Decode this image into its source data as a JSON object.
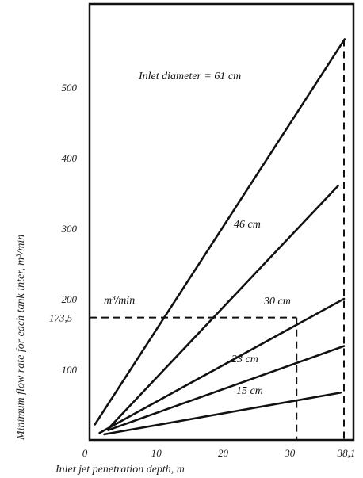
{
  "chart_data": {
    "type": "line",
    "xlabel": "Inlet jet penetration depth, m",
    "ylabel": "Minimum flow rate for each tank inter, m³/min",
    "xlim": [
      0,
      38.1
    ],
    "ylim": [
      0,
      575
    ],
    "x_ticks": [
      {
        "value": 0,
        "label": "0"
      },
      {
        "value": 10,
        "label": "10"
      },
      {
        "value": 20,
        "label": "20"
      },
      {
        "value": 30,
        "label": "30"
      },
      {
        "value": 38.1,
        "label": "38,1"
      }
    ],
    "y_ticks": [
      {
        "value": 100,
        "label": "100"
      },
      {
        "value": 173.5,
        "label": "173,5"
      },
      {
        "value": 200,
        "label": "200"
      },
      {
        "value": 300,
        "label": "300"
      },
      {
        "value": 400,
        "label": "400"
      },
      {
        "value": 500,
        "label": "500"
      }
    ],
    "grid": false,
    "series": [
      {
        "name": "Inlet diameter = 61 cm",
        "x": [
          0.8,
          38.2
        ],
        "y": [
          22,
          568
        ]
      },
      {
        "name": "46 cm",
        "x": [
          2.8,
          37.2
        ],
        "y": [
          16,
          360
        ]
      },
      {
        "name": "30 cm",
        "x": [
          1.5,
          38.1
        ],
        "y": [
          10,
          200
        ]
      },
      {
        "name": "23 cm",
        "x": [
          2.8,
          38.1
        ],
        "y": [
          14,
          133
        ]
      },
      {
        "name": "15 cm",
        "x": [
          2.2,
          37.6
        ],
        "y": [
          8,
          67
        ]
      }
    ],
    "annotations": {
      "unit_label": "m³/min",
      "dashed_reference": [
        {
          "from": [
            0,
            173.5
          ],
          "to": [
            31,
            173.5
          ]
        },
        {
          "from": [
            31,
            173.5
          ],
          "to": [
            31,
            0
          ]
        },
        {
          "from": [
            38.1,
            568
          ],
          "to": [
            38.1,
            0
          ]
        }
      ]
    }
  }
}
